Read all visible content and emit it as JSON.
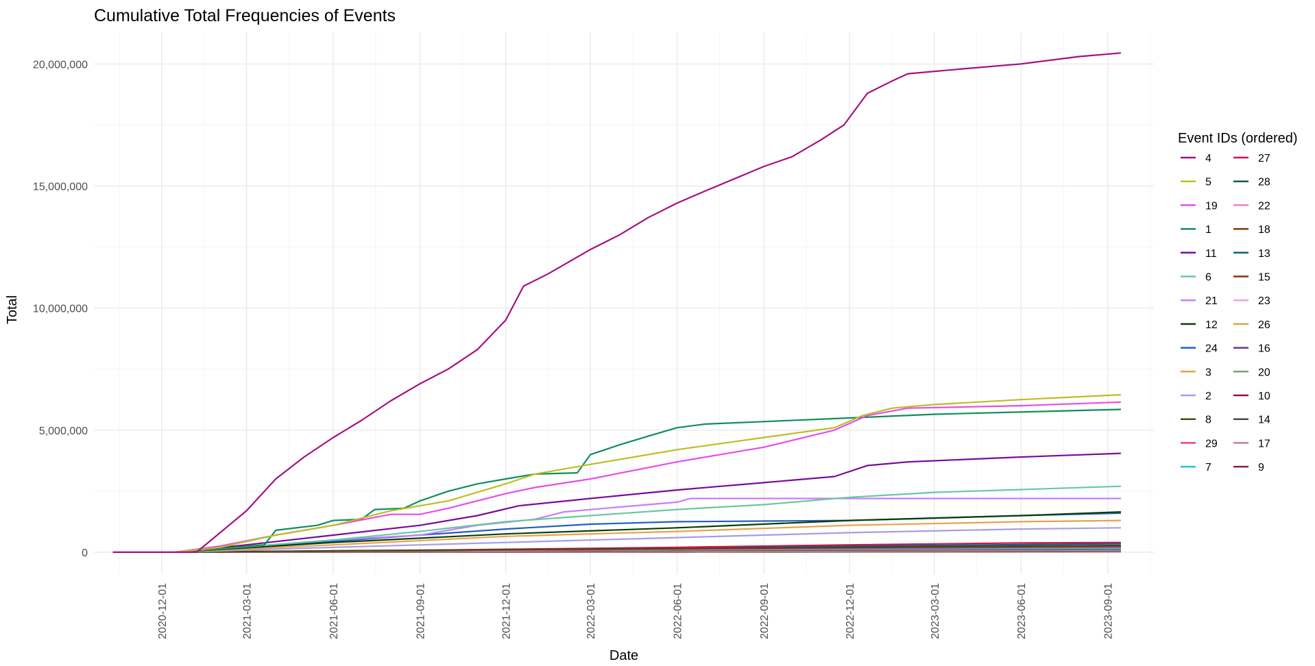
{
  "chart_data": {
    "type": "line",
    "title": "Cumulative Total Frequencies of Events",
    "xlabel": "Date",
    "ylabel": "Total",
    "x_tick_labels": [
      "2020-12-01",
      "2021-03-01",
      "2021-06-01",
      "2021-09-01",
      "2021-12-01",
      "2022-03-01",
      "2022-06-01",
      "2022-09-01",
      "2022-12-01",
      "2023-03-01",
      "2023-06-01",
      "2023-09-01"
    ],
    "x_ticks": [
      "2020-12-01",
      "2021-03-01",
      "2021-06-01",
      "2021-09-01",
      "2021-12-01",
      "2022-03-01",
      "2022-06-01",
      "2022-09-01",
      "2022-12-01",
      "2023-03-01",
      "2023-06-01",
      "2023-09-01"
    ],
    "y_tick_labels": [
      "0",
      "5,000,000",
      "10,000,000",
      "15,000,000",
      "20,000,000"
    ],
    "y_ticks": [
      0,
      5000000,
      10000000,
      15000000,
      20000000
    ],
    "xlim": [
      "2020-09-20",
      "2023-10-20"
    ],
    "ylim": [
      -900000,
      21300000
    ],
    "grid": true,
    "legend_position": "right",
    "legend_title": "Event IDs (ordered)",
    "series": [
      {
        "name": "4",
        "color": "#A50F7E",
        "points": [
          [
            "2020-10-10",
            0
          ],
          [
            "2021-01-07",
            0
          ],
          [
            "2021-02-01",
            800000
          ],
          [
            "2021-03-01",
            1700000
          ],
          [
            "2021-04-01",
            3000000
          ],
          [
            "2021-05-01",
            3900000
          ],
          [
            "2021-06-01",
            4700000
          ],
          [
            "2021-07-01",
            5400000
          ],
          [
            "2021-08-01",
            6200000
          ],
          [
            "2021-09-01",
            6900000
          ],
          [
            "2021-10-01",
            7500000
          ],
          [
            "2021-11-01",
            8300000
          ],
          [
            "2021-12-01",
            9500000
          ],
          [
            "2021-12-20",
            10900000
          ],
          [
            "2022-01-15",
            11400000
          ],
          [
            "2022-03-01",
            12400000
          ],
          [
            "2022-04-01",
            13000000
          ],
          [
            "2022-05-01",
            13700000
          ],
          [
            "2022-06-01",
            14300000
          ],
          [
            "2022-07-01",
            14800000
          ],
          [
            "2022-08-01",
            15300000
          ],
          [
            "2022-09-01",
            15800000
          ],
          [
            "2022-10-01",
            16200000
          ],
          [
            "2022-11-01",
            16900000
          ],
          [
            "2022-11-25",
            17500000
          ],
          [
            "2022-12-20",
            18800000
          ],
          [
            "2023-01-15",
            19300000
          ],
          [
            "2023-02-01",
            19600000
          ],
          [
            "2023-04-01",
            19800000
          ],
          [
            "2023-06-01",
            20000000
          ],
          [
            "2023-08-01",
            20300000
          ],
          [
            "2023-09-15",
            20450000
          ]
        ]
      },
      {
        "name": "5",
        "color": "#BCBD22",
        "points": [
          [
            "2020-12-15",
            0
          ],
          [
            "2021-02-01",
            200000
          ],
          [
            "2021-04-01",
            700000
          ],
          [
            "2021-06-01",
            1100000
          ],
          [
            "2021-08-01",
            1700000
          ],
          [
            "2021-10-01",
            2100000
          ],
          [
            "2021-12-01",
            2800000
          ],
          [
            "2022-01-01",
            3200000
          ],
          [
            "2022-03-01",
            3600000
          ],
          [
            "2022-06-01",
            4200000
          ],
          [
            "2022-09-01",
            4700000
          ],
          [
            "2022-11-15",
            5100000
          ],
          [
            "2022-12-15",
            5600000
          ],
          [
            "2023-01-15",
            5900000
          ],
          [
            "2023-03-01",
            6050000
          ],
          [
            "2023-06-01",
            6250000
          ],
          [
            "2023-09-15",
            6450000
          ]
        ]
      },
      {
        "name": "19",
        "color": "#E94BE8",
        "points": [
          [
            "2020-12-15",
            0
          ],
          [
            "2021-02-01",
            250000
          ],
          [
            "2021-04-01",
            700000
          ],
          [
            "2021-06-01",
            1100000
          ],
          [
            "2021-08-01",
            1550000
          ],
          [
            "2021-09-01",
            1550000
          ],
          [
            "2021-10-01",
            1800000
          ],
          [
            "2021-12-01",
            2400000
          ],
          [
            "2022-01-01",
            2650000
          ],
          [
            "2022-03-01",
            3000000
          ],
          [
            "2022-06-01",
            3700000
          ],
          [
            "2022-09-01",
            4300000
          ],
          [
            "2022-11-15",
            5000000
          ],
          [
            "2022-12-20",
            5600000
          ],
          [
            "2023-02-01",
            5900000
          ],
          [
            "2023-06-01",
            6000000
          ],
          [
            "2023-09-15",
            6150000
          ]
        ]
      },
      {
        "name": "1",
        "color": "#0E8D5A",
        "points": [
          [
            "2020-12-15",
            0
          ],
          [
            "2021-03-20",
            300000
          ],
          [
            "2021-04-01",
            900000
          ],
          [
            "2021-05-15",
            1100000
          ],
          [
            "2021-06-01",
            1300000
          ],
          [
            "2021-07-01",
            1350000
          ],
          [
            "2021-07-15",
            1750000
          ],
          [
            "2021-08-15",
            1800000
          ],
          [
            "2021-09-01",
            2100000
          ],
          [
            "2021-10-01",
            2500000
          ],
          [
            "2021-11-01",
            2800000
          ],
          [
            "2021-12-01",
            3000000
          ],
          [
            "2022-01-01",
            3200000
          ],
          [
            "2022-02-15",
            3250000
          ],
          [
            "2022-03-01",
            4000000
          ],
          [
            "2022-04-01",
            4400000
          ],
          [
            "2022-05-01",
            4750000
          ],
          [
            "2022-06-01",
            5100000
          ],
          [
            "2022-07-01",
            5250000
          ],
          [
            "2022-09-01",
            5350000
          ],
          [
            "2022-12-01",
            5500000
          ],
          [
            "2023-03-01",
            5650000
          ],
          [
            "2023-09-15",
            5850000
          ]
        ]
      },
      {
        "name": "11",
        "color": "#7B0A9A",
        "points": [
          [
            "2020-12-15",
            0
          ],
          [
            "2021-03-01",
            300000
          ],
          [
            "2021-06-01",
            700000
          ],
          [
            "2021-09-01",
            1100000
          ],
          [
            "2021-11-01",
            1500000
          ],
          [
            "2021-12-15",
            1900000
          ],
          [
            "2022-03-01",
            2200000
          ],
          [
            "2022-06-01",
            2550000
          ],
          [
            "2022-09-01",
            2850000
          ],
          [
            "2022-11-15",
            3100000
          ],
          [
            "2022-12-20",
            3550000
          ],
          [
            "2023-02-01",
            3700000
          ],
          [
            "2023-06-01",
            3900000
          ],
          [
            "2023-09-15",
            4050000
          ]
        ]
      },
      {
        "name": "6",
        "color": "#66C99E",
        "points": [
          [
            "2020-12-15",
            0
          ],
          [
            "2021-06-01",
            500000
          ],
          [
            "2021-09-01",
            850000
          ],
          [
            "2021-12-01",
            1250000
          ],
          [
            "2022-03-01",
            1500000
          ],
          [
            "2022-06-01",
            1750000
          ],
          [
            "2022-09-01",
            1950000
          ],
          [
            "2022-12-01",
            2250000
          ],
          [
            "2023-03-01",
            2450000
          ],
          [
            "2023-09-15",
            2700000
          ]
        ]
      },
      {
        "name": "21",
        "color": "#C77CFF",
        "points": [
          [
            "2020-12-15",
            0
          ],
          [
            "2021-06-01",
            500000
          ],
          [
            "2021-09-01",
            700000
          ],
          [
            "2021-11-01",
            1100000
          ],
          [
            "2022-01-01",
            1350000
          ],
          [
            "2022-02-01",
            1650000
          ],
          [
            "2022-04-01",
            1850000
          ],
          [
            "2022-06-01",
            2050000
          ],
          [
            "2022-06-15",
            2200000
          ],
          [
            "2022-09-01",
            2200000
          ],
          [
            "2023-09-15",
            2200000
          ]
        ]
      },
      {
        "name": "12",
        "color": "#0B3D0B",
        "points": [
          [
            "2020-12-15",
            0
          ],
          [
            "2021-06-01",
            400000
          ],
          [
            "2021-12-01",
            750000
          ],
          [
            "2022-06-01",
            1000000
          ],
          [
            "2022-12-01",
            1300000
          ],
          [
            "2023-06-01",
            1500000
          ],
          [
            "2023-09-15",
            1650000
          ]
        ]
      },
      {
        "name": "24",
        "color": "#1F5FBF",
        "points": [
          [
            "2020-12-15",
            0
          ],
          [
            "2021-06-01",
            450000
          ],
          [
            "2021-12-01",
            950000
          ],
          [
            "2022-03-01",
            1150000
          ],
          [
            "2022-06-01",
            1250000
          ],
          [
            "2022-12-01",
            1300000
          ],
          [
            "2023-06-01",
            1500000
          ],
          [
            "2023-09-15",
            1600000
          ]
        ]
      },
      {
        "name": "3",
        "color": "#E6A24A",
        "points": [
          [
            "2020-12-15",
            0
          ],
          [
            "2021-06-01",
            300000
          ],
          [
            "2021-12-01",
            650000
          ],
          [
            "2022-06-01",
            850000
          ],
          [
            "2022-12-01",
            1100000
          ],
          [
            "2023-06-01",
            1250000
          ],
          [
            "2023-09-15",
            1300000
          ]
        ]
      },
      {
        "name": "2",
        "color": "#A89BEA",
        "points": [
          [
            "2020-12-15",
            0
          ],
          [
            "2021-06-01",
            200000
          ],
          [
            "2021-12-01",
            400000
          ],
          [
            "2022-06-01",
            600000
          ],
          [
            "2022-12-01",
            800000
          ],
          [
            "2023-06-01",
            950000
          ],
          [
            "2023-09-15",
            1000000
          ]
        ]
      },
      {
        "name": "8",
        "color": "#4A4A10",
        "points": [
          [
            "2020-12-15",
            0
          ],
          [
            "2021-06-01",
            60000
          ],
          [
            "2022-06-01",
            150000
          ],
          [
            "2023-09-15",
            250000
          ]
        ]
      },
      {
        "name": "29",
        "color": "#EB3F86",
        "points": [
          [
            "2020-12-15",
            0
          ],
          [
            "2021-06-01",
            50000
          ],
          [
            "2022-06-01",
            120000
          ],
          [
            "2023-09-15",
            200000
          ]
        ]
      },
      {
        "name": "7",
        "color": "#1FC4D9",
        "points": [
          [
            "2020-12-15",
            0
          ],
          [
            "2021-06-01",
            50000
          ],
          [
            "2022-06-01",
            100000
          ],
          [
            "2023-09-15",
            150000
          ]
        ]
      },
      {
        "name": "27",
        "color": "#D6104F",
        "points": [
          [
            "2020-12-15",
            0
          ],
          [
            "2021-09-01",
            80000
          ],
          [
            "2022-06-01",
            200000
          ],
          [
            "2022-12-01",
            300000
          ],
          [
            "2023-06-01",
            380000
          ],
          [
            "2023-09-15",
            400000
          ]
        ]
      },
      {
        "name": "28",
        "color": "#0F5C4A",
        "points": [
          [
            "2020-12-15",
            0
          ],
          [
            "2021-09-01",
            50000
          ],
          [
            "2022-06-01",
            150000
          ],
          [
            "2023-09-15",
            280000
          ]
        ]
      },
      {
        "name": "22",
        "color": "#F27FBE",
        "points": [
          [
            "2020-12-15",
            0
          ],
          [
            "2021-09-01",
            40000
          ],
          [
            "2022-06-01",
            100000
          ],
          [
            "2023-09-15",
            180000
          ]
        ]
      },
      {
        "name": "18",
        "color": "#7A3A00",
        "points": [
          [
            "2020-12-15",
            0
          ],
          [
            "2021-09-01",
            50000
          ],
          [
            "2022-06-01",
            120000
          ],
          [
            "2023-09-15",
            220000
          ]
        ]
      },
      {
        "name": "13",
        "color": "#0B5E8A",
        "points": [
          [
            "2020-12-15",
            0
          ],
          [
            "2021-09-01",
            60000
          ],
          [
            "2022-06-01",
            180000
          ],
          [
            "2023-09-15",
            350000
          ]
        ]
      },
      {
        "name": "15",
        "color": "#8B2E0E",
        "points": [
          [
            "2020-12-15",
            0
          ],
          [
            "2021-09-01",
            30000
          ],
          [
            "2022-06-01",
            70000
          ],
          [
            "2023-09-15",
            120000
          ]
        ]
      },
      {
        "name": "23",
        "color": "#E7A1F0",
        "points": [
          [
            "2020-12-15",
            0
          ],
          [
            "2021-09-01",
            30000
          ],
          [
            "2022-06-01",
            60000
          ],
          [
            "2023-09-15",
            100000
          ]
        ]
      },
      {
        "name": "26",
        "color": "#D9A441",
        "points": [
          [
            "2020-12-15",
            0
          ],
          [
            "2021-09-01",
            20000
          ],
          [
            "2022-06-01",
            50000
          ],
          [
            "2023-09-15",
            90000
          ]
        ]
      },
      {
        "name": "16",
        "color": "#5E3B8C",
        "points": [
          [
            "2020-12-15",
            0
          ],
          [
            "2021-09-01",
            20000
          ],
          [
            "2022-06-01",
            40000
          ],
          [
            "2023-09-15",
            70000
          ]
        ]
      },
      {
        "name": "20",
        "color": "#7C9C7C",
        "points": [
          [
            "2020-12-15",
            0
          ],
          [
            "2021-09-01",
            10000
          ],
          [
            "2022-06-01",
            30000
          ],
          [
            "2023-09-15",
            50000
          ]
        ]
      },
      {
        "name": "10",
        "color": "#A01030",
        "points": [
          [
            "2020-12-15",
            0
          ],
          [
            "2021-09-01",
            30000
          ],
          [
            "2022-06-01",
            60000
          ],
          [
            "2023-09-15",
            90000
          ]
        ]
      },
      {
        "name": "14",
        "color": "#4A4A4A",
        "points": [
          [
            "2020-12-15",
            0
          ],
          [
            "2021-09-01",
            10000
          ],
          [
            "2022-06-01",
            20000
          ],
          [
            "2023-09-15",
            40000
          ]
        ]
      },
      {
        "name": "17",
        "color": "#C77BA0",
        "points": [
          [
            "2020-12-15",
            0
          ],
          [
            "2021-09-01",
            10000
          ],
          [
            "2022-06-01",
            20000
          ],
          [
            "2023-09-15",
            30000
          ]
        ]
      },
      {
        "name": "9",
        "color": "#8C1C3C",
        "points": [
          [
            "2020-12-15",
            0
          ],
          [
            "2021-09-01",
            5000
          ],
          [
            "2022-06-01",
            10000
          ],
          [
            "2023-09-15",
            20000
          ]
        ]
      }
    ]
  }
}
